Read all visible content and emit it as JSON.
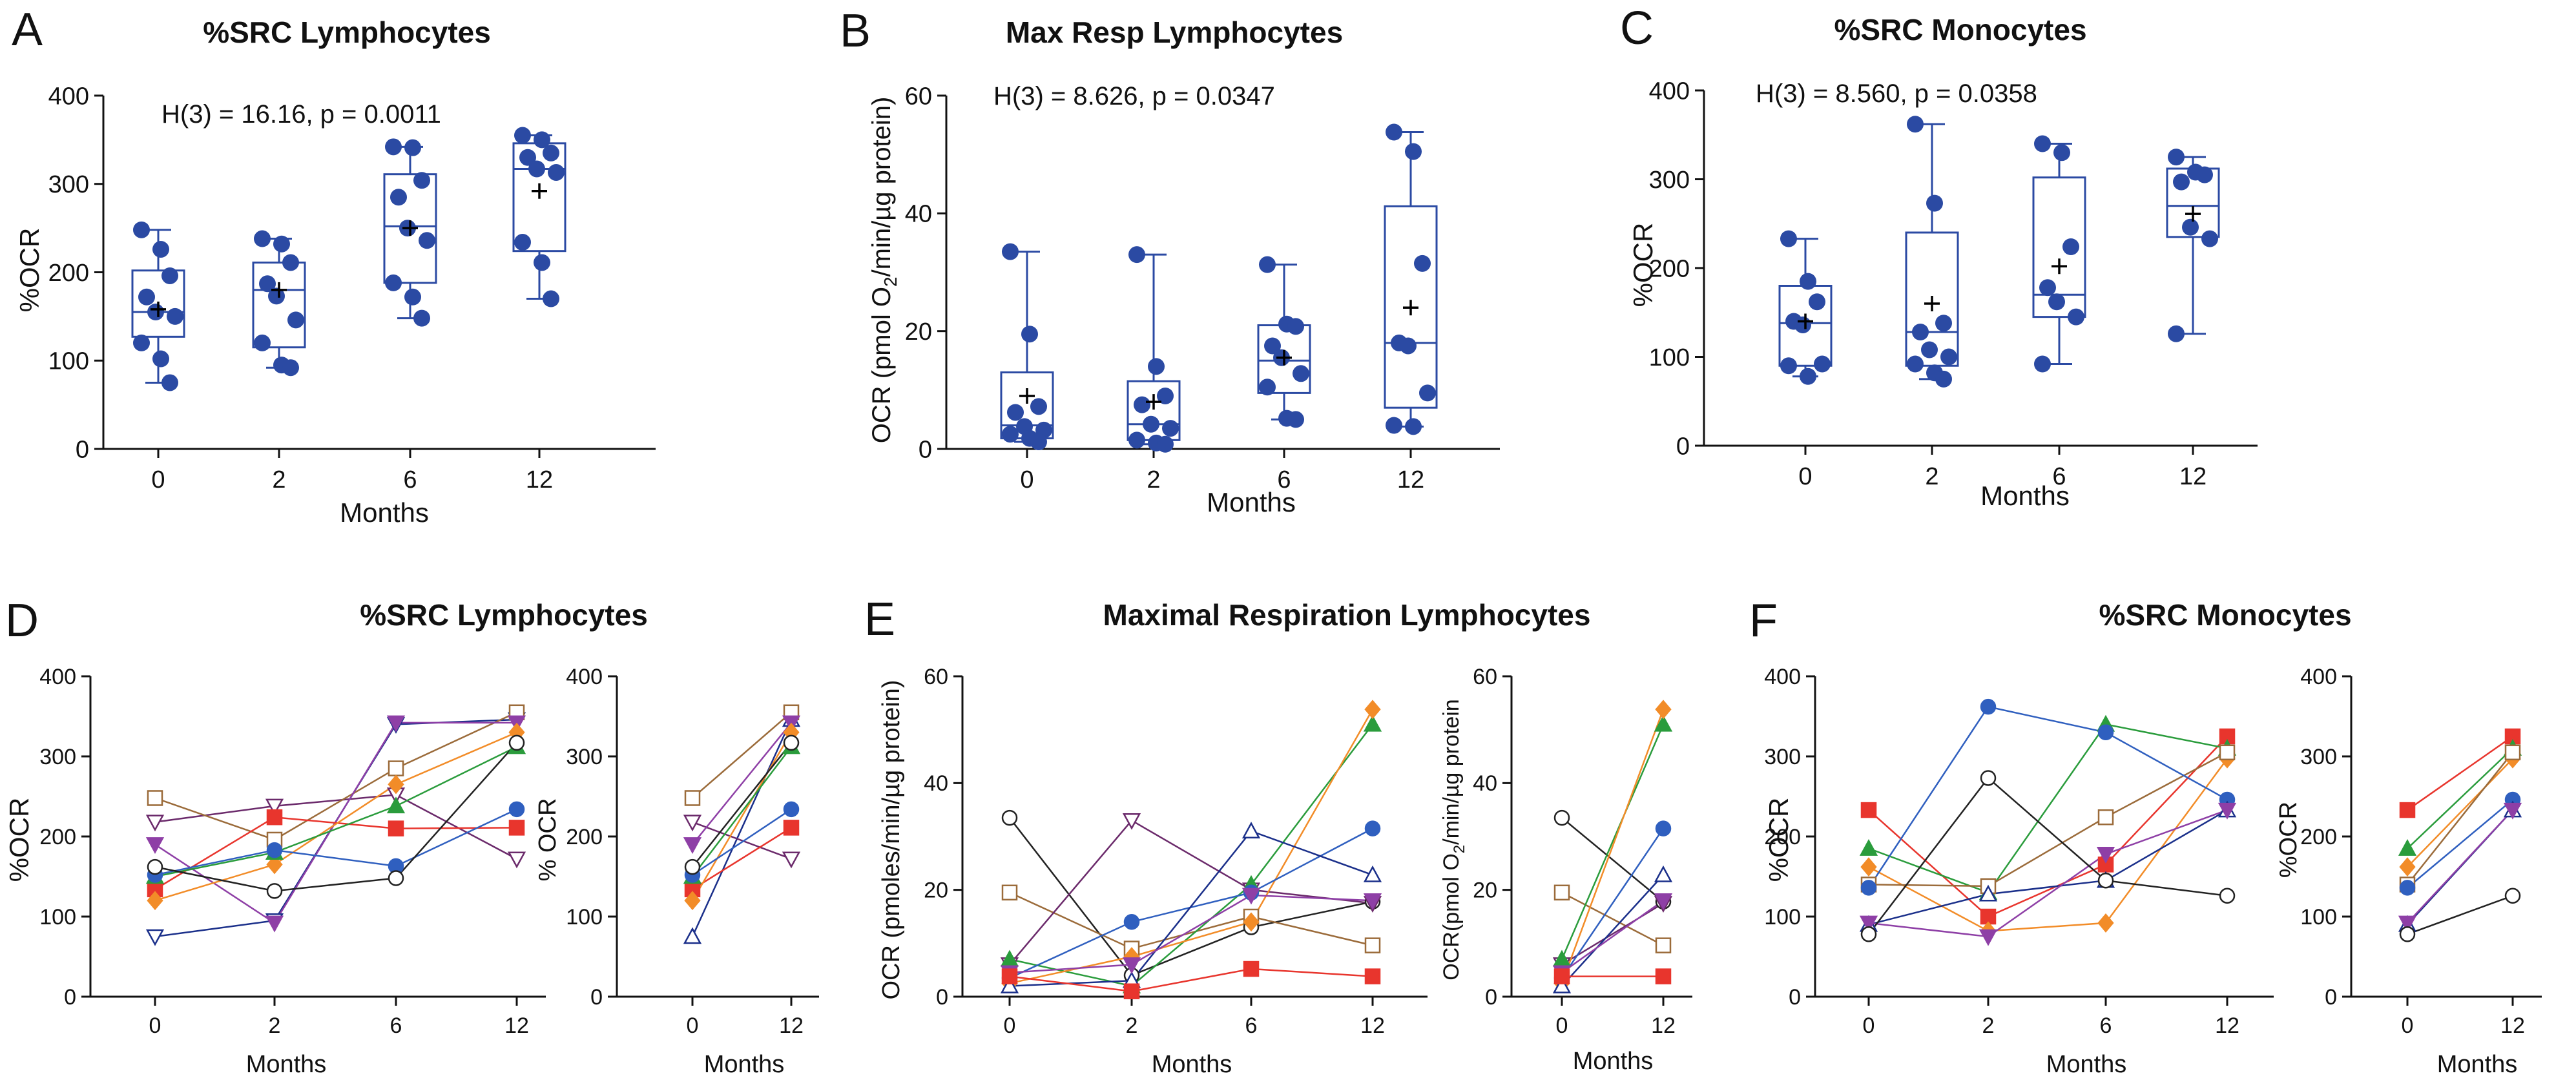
{
  "chart_data": [
    {
      "id": "A",
      "type": "box",
      "panel_letter": "A",
      "title": "%SRC Lymphocytes",
      "xlabel": "Months",
      "ylabel": "%OCR",
      "stat": "H(3) = 16.16, p = 0.0011",
      "categories": [
        "0",
        "2",
        "6",
        "12"
      ],
      "ylim": [
        0,
        400
      ],
      "yticks": [
        0,
        100,
        200,
        300,
        400
      ],
      "groups": [
        {
          "min": 75,
          "q1": 127,
          "median": 155,
          "q3": 202,
          "max": 248,
          "mean": 158,
          "points": [
            248,
            226,
            196,
            172,
            155,
            150,
            120,
            102,
            75
          ]
        },
        {
          "min": 92,
          "q1": 115,
          "median": 180,
          "q3": 211,
          "max": 238,
          "mean": 180,
          "points": [
            238,
            232,
            211,
            187,
            173,
            146,
            120,
            95,
            92
          ]
        },
        {
          "min": 148,
          "q1": 188,
          "median": 252,
          "q3": 311,
          "max": 342,
          "mean": 250,
          "points": [
            342,
            341,
            304,
            285,
            250,
            236,
            188,
            172,
            148
          ]
        },
        {
          "min": 170,
          "q1": 224,
          "median": 317,
          "q3": 346,
          "max": 355,
          "mean": 292,
          "points": [
            355,
            350,
            335,
            330,
            317,
            313,
            234,
            211,
            170
          ]
        }
      ]
    },
    {
      "id": "B",
      "type": "box",
      "panel_letter": "B",
      "title": "Max Resp Lymphocytes",
      "xlabel": "Months",
      "ylabel_pre": "OCR (pmol O",
      "ylabel_sub": "2",
      "ylabel_post": "/min/µg protein)",
      "stat": "H(3) = 8.626, p = 0.0347",
      "categories": [
        "0",
        "2",
        "6",
        "12"
      ],
      "ylim": [
        0,
        60
      ],
      "yticks": [
        0,
        20,
        40,
        60
      ],
      "groups": [
        {
          "min": 1.2,
          "q1": 1.8,
          "median": 4.0,
          "q3": 13.0,
          "max": 33.5,
          "mean": 9.0,
          "points": [
            33.5,
            19.5,
            7.2,
            6.2,
            3.8,
            3.2,
            2.5,
            1.8,
            1.2
          ]
        },
        {
          "min": 0.8,
          "q1": 1.5,
          "median": 4.2,
          "q3": 11.5,
          "max": 33.0,
          "mean": 8.0,
          "points": [
            33.0,
            14.0,
            9.0,
            7.5,
            4.2,
            3.5,
            1.5,
            1.0,
            0.8
          ]
        },
        {
          "min": 5.0,
          "q1": 9.5,
          "median": 15.0,
          "q3": 21.0,
          "max": 31.3,
          "mean": 15.5,
          "points": [
            31.3,
            21.2,
            20.8,
            17.5,
            15.5,
            12.8,
            10.5,
            5.2,
            5.0
          ]
        },
        {
          "min": 3.8,
          "q1": 7.0,
          "median": 18.0,
          "q3": 41.2,
          "max": 53.8,
          "mean": 24.0,
          "points": [
            53.8,
            50.5,
            31.5,
            18.0,
            17.5,
            9.5,
            4.0,
            3.8
          ]
        }
      ]
    },
    {
      "id": "C",
      "type": "box",
      "panel_letter": "C",
      "title": "%SRC Monocytes",
      "xlabel": "Months",
      "ylabel": "%OCR",
      "stat": "H(3) = 8.560, p = 0.0358",
      "categories": [
        "0",
        "2",
        "6",
        "12"
      ],
      "ylim": [
        0,
        400
      ],
      "yticks": [
        0,
        100,
        200,
        300,
        400
      ],
      "groups": [
        {
          "min": 78,
          "q1": 90,
          "median": 138,
          "q3": 180,
          "max": 233,
          "mean": 140,
          "points": [
            233,
            185,
            162,
            140,
            136,
            92,
            90,
            78
          ]
        },
        {
          "min": 75,
          "q1": 90,
          "median": 128,
          "q3": 240,
          "max": 362,
          "mean": 160,
          "points": [
            362,
            273,
            138,
            128,
            108,
            100,
            92,
            82,
            75
          ]
        },
        {
          "min": 92,
          "q1": 145,
          "median": 170,
          "q3": 302,
          "max": 340,
          "mean": 202,
          "points": [
            340,
            330,
            224,
            178,
            162,
            145,
            92
          ]
        },
        {
          "min": 126,
          "q1": 235,
          "median": 270,
          "q3": 312,
          "max": 325,
          "mean": 261,
          "points": [
            325,
            308,
            305,
            297,
            246,
            233,
            126
          ]
        }
      ]
    },
    {
      "id": "D",
      "type": "line",
      "panel_letter": "D",
      "title": "%SRC Lymphocytes",
      "xlabel": "Months",
      "ylabel": "%OCR",
      "ylabel_small": "% OCR",
      "categories": [
        "0",
        "2",
        "6",
        "12"
      ],
      "ylim": [
        0,
        400
      ],
      "yticks": [
        0,
        100,
        200,
        300,
        400
      ],
      "series": [
        {
          "name": "s1",
          "color": "#1a2f8a",
          "marker": "tri-down-open",
          "values": [
            75,
            95,
            340,
            346
          ]
        },
        {
          "name": "s2",
          "color": "#6b2a6b",
          "marker": "tri-down-open",
          "values": [
            218,
            238,
            252,
            172
          ]
        },
        {
          "name": "s3",
          "color": "#9b6b3a",
          "marker": "square-open",
          "values": [
            248,
            196,
            285,
            355
          ]
        },
        {
          "name": "s4",
          "color": "#8e3fa6",
          "marker": "tri-down",
          "values": [
            190,
            92,
            342,
            342
          ]
        },
        {
          "name": "s5",
          "color": "#e8352d",
          "marker": "square",
          "values": [
            134,
            224,
            210,
            211
          ]
        },
        {
          "name": "s6",
          "color": "#f28c28",
          "marker": "diamond",
          "values": [
            120,
            165,
            265,
            330
          ]
        },
        {
          "name": "s7",
          "color": "#2a9c3c",
          "marker": "triangle",
          "values": [
            150,
            180,
            238,
            312
          ]
        },
        {
          "name": "s8",
          "color": "#2f5fbf",
          "marker": "circle",
          "values": [
            152,
            183,
            163,
            234
          ]
        },
        {
          "name": "s9",
          "color": "#222222",
          "marker": "circle-open",
          "values": [
            162,
            132,
            148,
            317
          ]
        }
      ],
      "small": {
        "categories": [
          "0",
          "12"
        ],
        "series": [
          {
            "color": "#1a2f8a",
            "marker": "tri-up-open",
            "values": [
              75,
              346
            ]
          },
          {
            "color": "#6b2a6b",
            "marker": "tri-down-open",
            "values": [
              218,
              172
            ]
          },
          {
            "color": "#9b6b3a",
            "marker": "square-open",
            "values": [
              248,
              355
            ]
          },
          {
            "color": "#8e3fa6",
            "marker": "tri-down",
            "values": [
              190,
              342
            ]
          },
          {
            "color": "#e8352d",
            "marker": "square",
            "values": [
              134,
              211
            ]
          },
          {
            "color": "#f28c28",
            "marker": "diamond",
            "values": [
              120,
              330
            ]
          },
          {
            "color": "#2a9c3c",
            "marker": "triangle",
            "values": [
              150,
              312
            ]
          },
          {
            "color": "#2f5fbf",
            "marker": "circle",
            "values": [
              152,
              234
            ]
          },
          {
            "color": "#222222",
            "marker": "circle-open",
            "values": [
              162,
              317
            ]
          }
        ]
      }
    },
    {
      "id": "E",
      "type": "line",
      "panel_letter": "E",
      "title": "Maximal Respiration Lymphocytes",
      "xlabel": "Months",
      "ylabel": "OCR (pmoles/min/µg protein)",
      "ylabel_small_pre": "OCR(pmol O",
      "ylabel_small_sub": "2",
      "ylabel_small_post": "/min/µg protein",
      "categories": [
        "0",
        "2",
        "6",
        "12"
      ],
      "ylim": [
        0,
        60
      ],
      "yticks": [
        0,
        20,
        40,
        60
      ],
      "series": [
        {
          "name": "s1",
          "color": "#222222",
          "marker": "circle-open",
          "values": [
            33.5,
            4.0,
            13.0,
            17.8
          ]
        },
        {
          "name": "s2",
          "color": "#9b6b3a",
          "marker": "square-open",
          "values": [
            19.5,
            9.0,
            15.0,
            9.6
          ]
        },
        {
          "name": "s3",
          "color": "#6b2a6b",
          "marker": "tri-down-open",
          "values": [
            6.0,
            33.0,
            20.0,
            17.5
          ]
        },
        {
          "name": "s4",
          "color": "#2a9c3c",
          "marker": "triangle",
          "values": [
            7.0,
            2.0,
            21.0,
            51.0
          ]
        },
        {
          "name": "s5",
          "color": "#f28c28",
          "marker": "diamond",
          "values": [
            2.5,
            7.5,
            14.0,
            53.8
          ]
        },
        {
          "name": "s6",
          "color": "#2f5fbf",
          "marker": "circle",
          "values": [
            3.5,
            14.0,
            19.5,
            31.5
          ]
        },
        {
          "name": "s7",
          "color": "#1a2f8a",
          "marker": "tri-up-open",
          "values": [
            2.0,
            3.0,
            31.0,
            22.8
          ]
        },
        {
          "name": "s8",
          "color": "#8e3fa6",
          "marker": "tri-down",
          "values": [
            4.5,
            6.0,
            19.0,
            18.0
          ]
        },
        {
          "name": "s9",
          "color": "#e8352d",
          "marker": "square",
          "values": [
            3.8,
            1.0,
            5.2,
            3.8
          ]
        }
      ],
      "small": {
        "categories": [
          "0",
          "12"
        ],
        "series": [
          {
            "color": "#222222",
            "marker": "circle-open",
            "values": [
              33.5,
              17.8
            ]
          },
          {
            "color": "#9b6b3a",
            "marker": "square-open",
            "values": [
              19.5,
              9.6
            ]
          },
          {
            "color": "#6b2a6b",
            "marker": "tri-down-open",
            "values": [
              6.0,
              17.5
            ]
          },
          {
            "color": "#2a9c3c",
            "marker": "triangle",
            "values": [
              7.0,
              51.0
            ]
          },
          {
            "color": "#f28c28",
            "marker": "diamond",
            "values": [
              2.5,
              53.8
            ]
          },
          {
            "color": "#2f5fbf",
            "marker": "circle",
            "values": [
              3.5,
              31.5
            ]
          },
          {
            "color": "#1a2f8a",
            "marker": "tri-up-open",
            "values": [
              2.0,
              22.8
            ]
          },
          {
            "color": "#8e3fa6",
            "marker": "tri-down",
            "values": [
              4.5,
              18.0
            ]
          },
          {
            "color": "#e8352d",
            "marker": "square",
            "values": [
              3.8,
              3.8
            ]
          }
        ]
      }
    },
    {
      "id": "F",
      "type": "line",
      "panel_letter": "F",
      "title": "%SRC Monocytes",
      "xlabel": "Months",
      "ylabel": "%OCR",
      "categories": [
        "0",
        "2",
        "6",
        "12"
      ],
      "ylim": [
        0,
        400
      ],
      "yticks": [
        0,
        100,
        200,
        300,
        400
      ],
      "series": [
        {
          "name": "s1",
          "color": "#e8352d",
          "marker": "square",
          "values": [
            233,
            100,
            165,
            325
          ]
        },
        {
          "name": "s2",
          "color": "#2a9c3c",
          "marker": "triangle",
          "values": [
            185,
            130,
            340,
            310
          ]
        },
        {
          "name": "s3",
          "color": "#f28c28",
          "marker": "diamond",
          "values": [
            162,
            82,
            92,
            297
          ]
        },
        {
          "name": "s4",
          "color": "#9b6b3a",
          "marker": "square-open",
          "values": [
            140,
            138,
            224,
            305
          ]
        },
        {
          "name": "s5",
          "color": "#2f5fbf",
          "marker": "circle",
          "values": [
            136,
            362,
            330,
            246
          ]
        },
        {
          "name": "s6",
          "color": "#1a2f8a",
          "marker": "tri-up-open",
          "values": [
            90,
            128,
            145,
            233
          ]
        },
        {
          "name": "s7",
          "color": "#8e3fa6",
          "marker": "tri-down",
          "values": [
            92,
            75,
            178,
            233
          ]
        },
        {
          "name": "s8",
          "color": "#222222",
          "marker": "circle-open",
          "values": [
            78,
            273,
            145,
            126
          ]
        }
      ],
      "small": {
        "categories": [
          "0",
          "12"
        ],
        "series": [
          {
            "color": "#e8352d",
            "marker": "square",
            "values": [
              233,
              325
            ]
          },
          {
            "color": "#2a9c3c",
            "marker": "triangle",
            "values": [
              185,
              310
            ]
          },
          {
            "color": "#f28c28",
            "marker": "diamond",
            "values": [
              162,
              297
            ]
          },
          {
            "color": "#9b6b3a",
            "marker": "square-open",
            "values": [
              140,
              305
            ]
          },
          {
            "color": "#2f5fbf",
            "marker": "circle",
            "values": [
              136,
              246
            ]
          },
          {
            "color": "#1a2f8a",
            "marker": "tri-up-open",
            "values": [
              90,
              233
            ]
          },
          {
            "color": "#8e3fa6",
            "marker": "tri-down",
            "values": [
              92,
              233
            ]
          },
          {
            "color": "#222222",
            "marker": "circle-open",
            "values": [
              78,
              126
            ]
          }
        ]
      }
    }
  ],
  "colors": {
    "box": "#2b4aa3",
    "axis": "#111111"
  }
}
